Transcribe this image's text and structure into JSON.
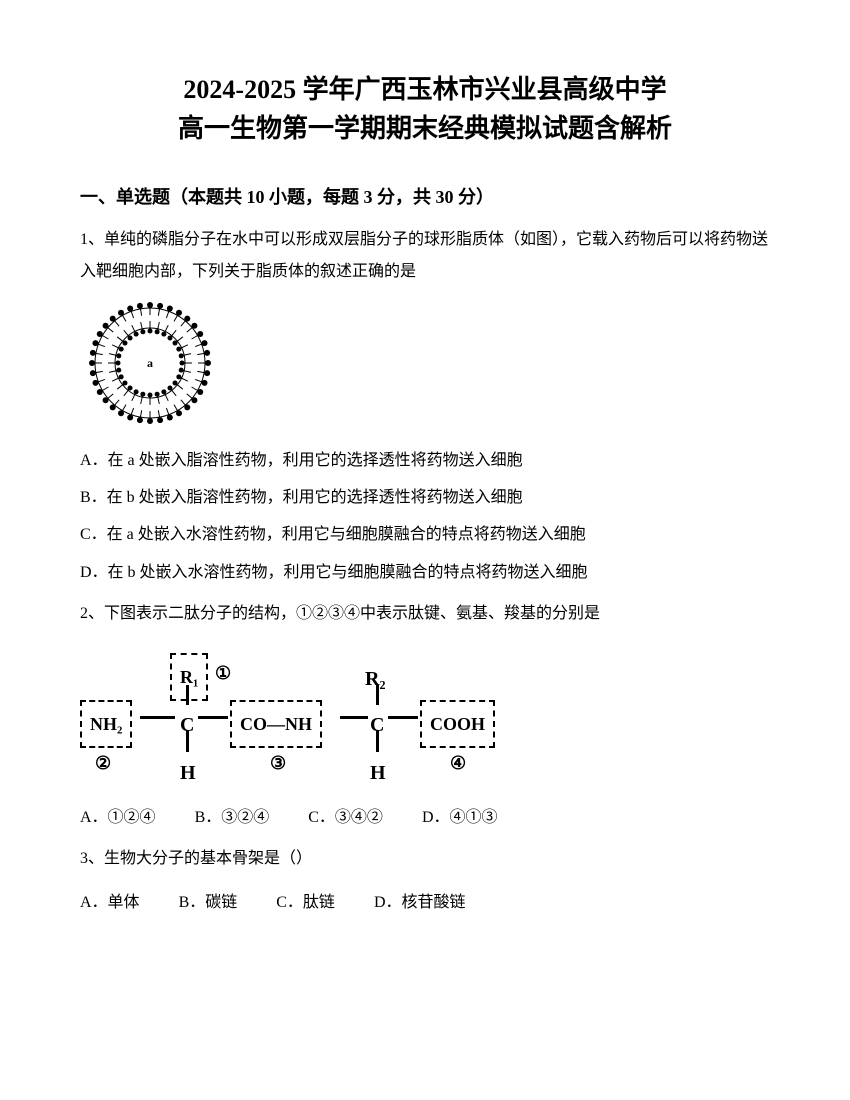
{
  "title_line1": "2024-2025 学年广西玉林市兴业县高级中学",
  "title_line2": "高一生物第一学期期末经典模拟试题含解析",
  "section_header": "一、单选题（本题共 10 小题，每题 3 分，共 30 分）",
  "q1": {
    "number": "1、",
    "text": "单纯的磷脂分子在水中可以形成双层脂分子的球形脂质体（如图），它载入药物后可以将药物送入靶细胞内部，下列关于脂质体的叙述正确的是",
    "label_a": "a",
    "options": {
      "A": "A．在 a 处嵌入脂溶性药物，利用它的选择透性将药物送入细胞",
      "B": "B．在 b 处嵌入脂溶性药物，利用它的选择透性将药物送入细胞",
      "C": "C．在 a 处嵌入水溶性药物，利用它与细胞膜融合的特点将药物送入细胞",
      "D": "D．在 b 处嵌入水溶性药物，利用它与细胞膜融合的特点将药物送入细胞"
    }
  },
  "q2": {
    "number": "2、",
    "text": "下图表示二肽分子的结构，①②③④中表示肽键、氨基、羧基的分别是",
    "chem": {
      "nh2": "NH₂",
      "r1": "R₁",
      "r2": "R₂",
      "c": "C",
      "h": "H",
      "conh": "CO—NH",
      "cooh": "COOH",
      "num1": "①",
      "num2": "②",
      "num3": "③",
      "num4": "④"
    },
    "options": {
      "A": "A．①②④",
      "B": "B．③②④",
      "C": "C．③④②",
      "D": "D．④①③"
    }
  },
  "q3": {
    "number": "3、",
    "text": "生物大分子的基本骨架是（）",
    "options": {
      "A": "A．单体",
      "B": "B．碳链",
      "C": "C．肽链",
      "D": "D．核苷酸链"
    }
  }
}
